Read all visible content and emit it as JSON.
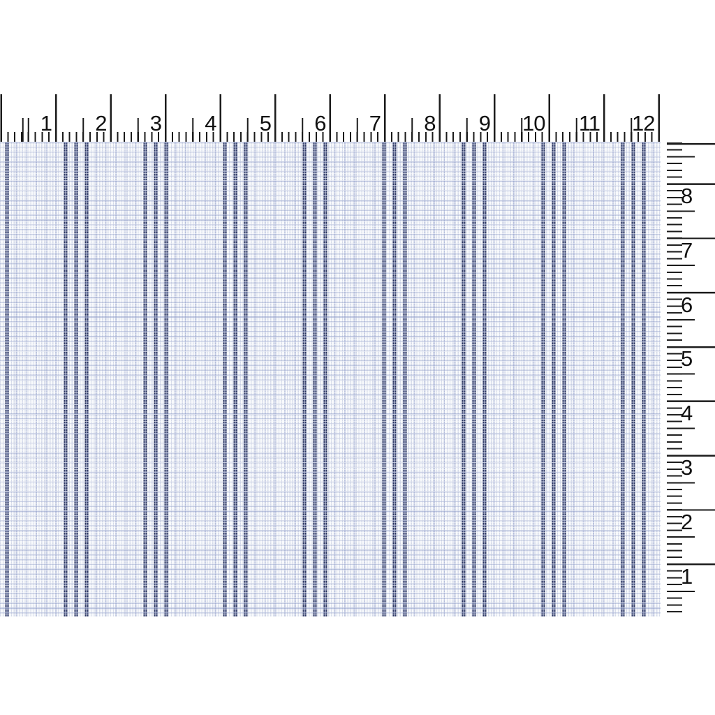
{
  "scene": {
    "description": "Scanned striped shirting fabric swatch measured by a horizontal inch ruler on top and a vertical inch ruler on the right",
    "background_color": "#ffffff"
  },
  "top_ruler": {
    "labels": [
      "1",
      "2",
      "3",
      "4",
      "5",
      "6",
      "7",
      "8",
      "9",
      "10",
      "11",
      "12"
    ],
    "tick_color": "#1b1b1b",
    "number_color": "#111111"
  },
  "right_ruler": {
    "labels": [
      "8",
      "7",
      "6",
      "5",
      "4",
      "3",
      "2",
      "1"
    ],
    "tick_color": "#1b1b1b",
    "number_color": "#111111"
  },
  "fabric": {
    "pattern": "fine light-blue micro-check ground with repeating groups of three doubled navy pinstripes",
    "stripe_groups_visible": 9,
    "stripes_per_group": 3,
    "colors": {
      "ground": "#f7f9fb",
      "weave_blue": "#9eaccf",
      "stripe_navy": "#2c3662",
      "stripe_slit": "#c6cfe8",
      "pinstripe_blue": "#96a2c8"
    }
  }
}
